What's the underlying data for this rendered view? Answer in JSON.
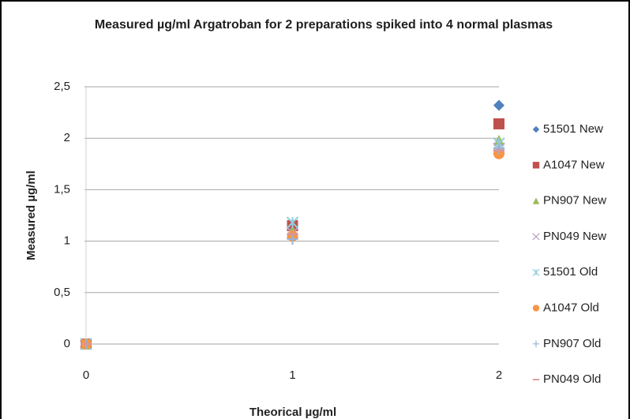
{
  "chart_data": {
    "type": "scatter",
    "title": "Measured µg/ml Argatroban  for 2 preparations spiked into 4 normal plasmas",
    "xlabel": "Theorical µg/ml",
    "ylabel": "Measured µg/ml",
    "x": [
      0,
      1,
      2
    ],
    "xlim": [
      0,
      2
    ],
    "xticks": [
      0,
      1,
      2
    ],
    "ylim": [
      0,
      2.5
    ],
    "yticks": [
      0,
      {
        "value": 0.5,
        "label": "0,5"
      },
      1,
      {
        "value": 1.5,
        "label": "1,5"
      },
      2,
      {
        "value": 2.5,
        "label": "2,5"
      }
    ],
    "grid": true,
    "legend": "right",
    "series": [
      {
        "name": "51501 New",
        "color": "#4f81bd",
        "marker": "diamond",
        "values": [
          0,
          1.12,
          2.32
        ]
      },
      {
        "name": "A1047 New",
        "color": "#c0504d",
        "marker": "square",
        "values": [
          0,
          1.15,
          2.14
        ]
      },
      {
        "name": "PN907 New",
        "color": "#9bbb59",
        "marker": "triangle",
        "values": [
          0,
          1.1,
          1.98
        ]
      },
      {
        "name": "PN049 New",
        "color": "#b3a2c7",
        "marker": "x",
        "values": [
          0,
          1.08,
          1.9
        ]
      },
      {
        "name": "51501 Old",
        "color": "#93cddd",
        "marker": "star",
        "values": [
          0,
          1.18,
          1.95
        ]
      },
      {
        "name": "A1047 Old",
        "color": "#f79646",
        "marker": "circle",
        "values": [
          0,
          1.05,
          1.85
        ]
      },
      {
        "name": "PN907 Old",
        "color": "#95b3d7",
        "marker": "plus",
        "values": [
          0,
          1.02,
          1.9
        ]
      },
      {
        "name": "PN049 Old",
        "color": "#d99694",
        "marker": "dash",
        "values": [
          0,
          1.07,
          1.88
        ]
      }
    ]
  }
}
